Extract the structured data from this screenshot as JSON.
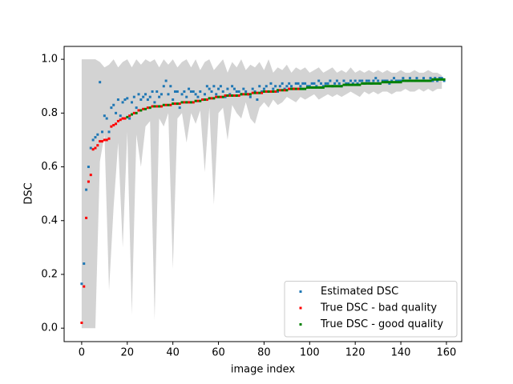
{
  "chart_data": {
    "type": "scatter",
    "xlabel": "image index",
    "ylabel": "DSC",
    "xlim": [
      -7.7,
      166.7
    ],
    "ylim": [
      -0.05,
      1.048
    ],
    "xticks": [
      0,
      20,
      40,
      60,
      80,
      100,
      120,
      140,
      160
    ],
    "yticks": [
      {
        "value": 0.0,
        "label": "0.0"
      },
      0.2,
      0.4,
      0.6,
      0.8,
      {
        "value": 1.0,
        "label": "1.0"
      }
    ],
    "legend": "lower right",
    "band": {
      "color": "#d3d3d3",
      "x": [
        0,
        2,
        4,
        6,
        8,
        10,
        12,
        14,
        16,
        18,
        20,
        22,
        24,
        26,
        28,
        30,
        32,
        34,
        36,
        38,
        40,
        42,
        44,
        46,
        48,
        50,
        52,
        54,
        56,
        58,
        60,
        62,
        64,
        66,
        68,
        70,
        72,
        74,
        76,
        78,
        80,
        82,
        84,
        86,
        88,
        90,
        92,
        94,
        96,
        98,
        100,
        102,
        104,
        106,
        108,
        110,
        112,
        114,
        116,
        118,
        120,
        122,
        124,
        126,
        128,
        130,
        132,
        134,
        136,
        138,
        140,
        142,
        144,
        146,
        148,
        150,
        152,
        154,
        156,
        158
      ],
      "upper": [
        1,
        1,
        1,
        1,
        0.99,
        0.97,
        0.98,
        1,
        0.97,
        0.99,
        1,
        0.97,
        1,
        0.98,
        1,
        0.99,
        1,
        0.97,
        1,
        0.98,
        1,
        0.97,
        0.99,
        1,
        0.97,
        1,
        0.96,
        0.99,
        1,
        0.96,
        0.98,
        1,
        0.95,
        0.99,
        0.97,
        1,
        0.96,
        0.98,
        0.97,
        0.99,
        0.96,
        1,
        0.95,
        0.97,
        0.96,
        0.98,
        0.95,
        0.97,
        0.96,
        0.97,
        0.95,
        0.96,
        0.97,
        0.95,
        0.96,
        0.97,
        0.95,
        0.96,
        0.95,
        0.97,
        0.95,
        0.96,
        0.95,
        0.96,
        0.95,
        0.96,
        0.95,
        0.96,
        0.95,
        0.95,
        0.96,
        0.95,
        0.95,
        0.96,
        0.95,
        0.95,
        0.96,
        0.95,
        0.95,
        0.94
      ],
      "lower": [
        0,
        0,
        0,
        0,
        0.62,
        0.72,
        0.14,
        0.45,
        0.69,
        0.3,
        0.73,
        0.05,
        0.72,
        0.6,
        0.75,
        0.77,
        0.03,
        0.78,
        0.75,
        0.8,
        0.22,
        0.78,
        0.8,
        0.69,
        0.8,
        0.76,
        0.81,
        0.58,
        0.82,
        0.46,
        0.8,
        0.82,
        0.7,
        0.83,
        0.8,
        0.78,
        0.84,
        0.78,
        0.76,
        0.82,
        0.84,
        0.82,
        0.85,
        0.83,
        0.84,
        0.86,
        0.85,
        0.84,
        0.86,
        0.85,
        0.86,
        0.87,
        0.85,
        0.86,
        0.87,
        0.86,
        0.87,
        0.86,
        0.87,
        0.88,
        0.87,
        0.86,
        0.88,
        0.87,
        0.88,
        0.87,
        0.88,
        0.88,
        0.87,
        0.88,
        0.88,
        0.89,
        0.88,
        0.88,
        0.89,
        0.88,
        0.89,
        0.88,
        0.89,
        0.89
      ]
    },
    "series": [
      {
        "name": "Estimated DSC",
        "color": "#1f77b4",
        "x": [
          0,
          1,
          2,
          3,
          4,
          5,
          6,
          7,
          8,
          9,
          10,
          11,
          12,
          13,
          14,
          15,
          16,
          17,
          18,
          19,
          20,
          21,
          22,
          23,
          24,
          25,
          26,
          27,
          28,
          29,
          30,
          31,
          32,
          33,
          34,
          35,
          36,
          37,
          38,
          39,
          40,
          41,
          42,
          43,
          44,
          45,
          46,
          47,
          48,
          49,
          50,
          51,
          52,
          53,
          54,
          55,
          56,
          57,
          58,
          59,
          60,
          61,
          62,
          63,
          64,
          65,
          66,
          67,
          68,
          69,
          70,
          71,
          72,
          73,
          74,
          75,
          76,
          77,
          78,
          79,
          80,
          81,
          82,
          83,
          84,
          85,
          86,
          87,
          88,
          89,
          90,
          91,
          92,
          93,
          94,
          95,
          96,
          97,
          98,
          99,
          100,
          101,
          102,
          103,
          104,
          105,
          106,
          107,
          108,
          109,
          110,
          111,
          112,
          113,
          114,
          115,
          116,
          117,
          118,
          119,
          120,
          121,
          122,
          123,
          124,
          125,
          126,
          127,
          128,
          129,
          130,
          131,
          132,
          133,
          134,
          135,
          136,
          137,
          138,
          139,
          140,
          141,
          142,
          143,
          144,
          145,
          146,
          147,
          148,
          149,
          150,
          151,
          152,
          153,
          154,
          155,
          156,
          157,
          158,
          159
        ],
        "values": [
          0.165,
          0.24,
          0.515,
          0.6,
          0.67,
          0.7,
          0.71,
          0.72,
          0.915,
          0.73,
          0.79,
          0.78,
          0.73,
          0.82,
          0.83,
          0.8,
          0.85,
          0.79,
          0.84,
          0.85,
          0.855,
          0.78,
          0.84,
          0.86,
          0.82,
          0.87,
          0.85,
          0.86,
          0.87,
          0.85,
          0.86,
          0.88,
          0.84,
          0.88,
          0.86,
          0.87,
          0.9,
          0.92,
          0.87,
          0.9,
          0.85,
          0.88,
          0.88,
          0.82,
          0.87,
          0.88,
          0.86,
          0.89,
          0.88,
          0.88,
          0.87,
          0.86,
          0.88,
          0.85,
          0.87,
          0.9,
          0.89,
          0.88,
          0.9,
          0.87,
          0.89,
          0.9,
          0.88,
          0.86,
          0.89,
          0.87,
          0.9,
          0.89,
          0.88,
          0.88,
          0.87,
          0.89,
          0.88,
          0.87,
          0.86,
          0.89,
          0.88,
          0.85,
          0.9,
          0.88,
          0.89,
          0.9,
          0.88,
          0.91,
          0.89,
          0.9,
          0.88,
          0.9,
          0.91,
          0.89,
          0.9,
          0.91,
          0.9,
          0.89,
          0.91,
          0.91,
          0.9,
          0.91,
          0.91,
          0.9,
          0.9,
          0.91,
          0.91,
          0.9,
          0.92,
          0.91,
          0.9,
          0.91,
          0.91,
          0.92,
          0.9,
          0.91,
          0.92,
          0.91,
          0.9,
          0.92,
          0.91,
          0.91,
          0.92,
          0.91,
          0.92,
          0.91,
          0.92,
          0.92,
          0.91,
          0.92,
          0.92,
          0.91,
          0.92,
          0.93,
          0.92,
          0.91,
          0.92,
          0.92,
          0.92,
          0.91,
          0.92,
          0.93,
          0.92,
          0.92,
          0.92,
          0.93,
          0.92,
          0.92,
          0.93,
          0.92,
          0.92,
          0.93,
          0.92,
          0.92,
          0.93,
          0.92,
          0.92,
          0.93,
          0.92,
          0.93,
          0.92,
          0.93,
          0.93,
          0.92
        ]
      },
      {
        "name": "True DSC - bad quality",
        "color": "#ff0000",
        "x": [
          0,
          1,
          2,
          3,
          4,
          5,
          6,
          7,
          8,
          9,
          10,
          11,
          12,
          13,
          14,
          15,
          16,
          17,
          18,
          19,
          21,
          23,
          25,
          27,
          29,
          31,
          33,
          35,
          37,
          39,
          41,
          43,
          45,
          47,
          49,
          51,
          53,
          55,
          57,
          59,
          61,
          63,
          65,
          67,
          69,
          71,
          73,
          75,
          77,
          79,
          81,
          83,
          85,
          87,
          89,
          91,
          93,
          95
        ],
        "values": [
          0.02,
          0.155,
          0.41,
          0.545,
          0.57,
          0.665,
          0.67,
          0.68,
          0.695,
          0.695,
          0.7,
          0.7,
          0.705,
          0.75,
          0.755,
          0.76,
          0.77,
          0.775,
          0.78,
          0.78,
          0.79,
          0.8,
          0.81,
          0.815,
          0.82,
          0.825,
          0.825,
          0.825,
          0.83,
          0.83,
          0.835,
          0.835,
          0.84,
          0.84,
          0.84,
          0.845,
          0.85,
          0.85,
          0.855,
          0.86,
          0.86,
          0.865,
          0.865,
          0.865,
          0.865,
          0.87,
          0.87,
          0.875,
          0.875,
          0.875,
          0.88,
          0.88,
          0.88,
          0.885,
          0.885,
          0.89,
          0.89,
          0.89
        ]
      },
      {
        "name": "True DSC - good quality",
        "color": "#008000",
        "x": [
          20,
          22,
          24,
          26,
          28,
          30,
          32,
          34,
          36,
          38,
          40,
          42,
          44,
          46,
          48,
          50,
          52,
          54,
          56,
          58,
          60,
          62,
          64,
          66,
          68,
          70,
          72,
          74,
          76,
          78,
          80,
          82,
          84,
          86,
          88,
          90,
          92,
          94,
          96,
          97,
          98,
          99,
          100,
          101,
          102,
          103,
          104,
          105,
          106,
          107,
          108,
          109,
          110,
          111,
          112,
          113,
          114,
          115,
          116,
          117,
          118,
          119,
          120,
          121,
          122,
          123,
          124,
          125,
          126,
          127,
          128,
          129,
          130,
          131,
          132,
          133,
          134,
          135,
          136,
          137,
          138,
          139,
          140,
          141,
          142,
          143,
          144,
          145,
          146,
          147,
          148,
          149,
          150,
          151,
          152,
          153,
          154,
          155,
          156,
          157,
          158,
          159
        ],
        "values": [
          0.785,
          0.795,
          0.8,
          0.81,
          0.815,
          0.82,
          0.825,
          0.825,
          0.83,
          0.83,
          0.835,
          0.835,
          0.84,
          0.84,
          0.84,
          0.845,
          0.845,
          0.85,
          0.855,
          0.855,
          0.86,
          0.86,
          0.865,
          0.865,
          0.865,
          0.87,
          0.87,
          0.87,
          0.875,
          0.875,
          0.88,
          0.88,
          0.88,
          0.885,
          0.885,
          0.885,
          0.89,
          0.89,
          0.89,
          0.89,
          0.89,
          0.895,
          0.895,
          0.895,
          0.895,
          0.895,
          0.895,
          0.895,
          0.895,
          0.9,
          0.9,
          0.9,
          0.9,
          0.9,
          0.9,
          0.9,
          0.9,
          0.905,
          0.905,
          0.905,
          0.905,
          0.905,
          0.905,
          0.905,
          0.905,
          0.91,
          0.91,
          0.91,
          0.91,
          0.91,
          0.91,
          0.91,
          0.91,
          0.91,
          0.915,
          0.915,
          0.915,
          0.915,
          0.915,
          0.915,
          0.915,
          0.915,
          0.915,
          0.92,
          0.92,
          0.92,
          0.92,
          0.92,
          0.92,
          0.92,
          0.92,
          0.92,
          0.92,
          0.92,
          0.92,
          0.92,
          0.925,
          0.925,
          0.925,
          0.925,
          0.925,
          0.925
        ]
      }
    ]
  }
}
